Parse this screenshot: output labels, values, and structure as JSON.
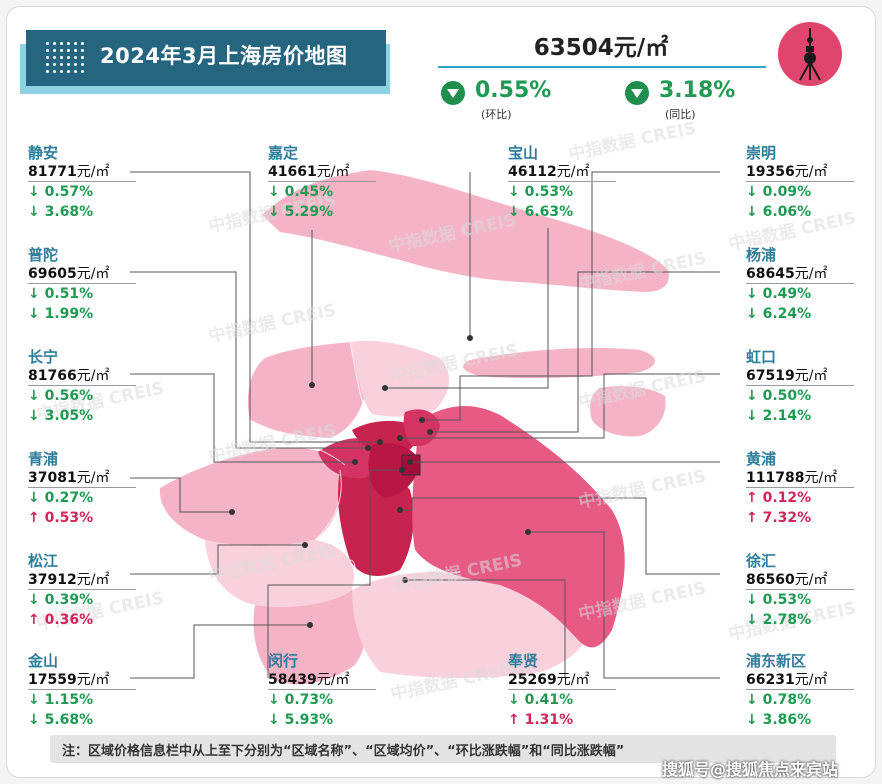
{
  "title": "2024年3月上海房价地图",
  "citywide": {
    "avg_price": "63504元/㎡",
    "mom": {
      "value": "0.55%",
      "label": "(环比)",
      "direction": "down"
    },
    "yoy": {
      "value": "3.18%",
      "label": "(同比)",
      "direction": "down"
    }
  },
  "districts": [
    {
      "id": "jingan",
      "name": "静安",
      "price": "81771",
      "unit": "元/㎡",
      "mom": "↓ 0.57%",
      "mom_dir": "down",
      "yoy": "↓ 3.68%",
      "yoy_dir": "down"
    },
    {
      "id": "putuo",
      "name": "普陀",
      "price": "69605",
      "unit": "元/㎡",
      "mom": "↓ 0.51%",
      "mom_dir": "down",
      "yoy": "↓ 1.99%",
      "yoy_dir": "down"
    },
    {
      "id": "changning",
      "name": "长宁",
      "price": "81766",
      "unit": "元/㎡",
      "mom": "↓ 0.56%",
      "mom_dir": "down",
      "yoy": "↓ 3.05%",
      "yoy_dir": "down"
    },
    {
      "id": "qingpu",
      "name": "青浦",
      "price": "37081",
      "unit": "元/㎡",
      "mom": "↓ 0.27%",
      "mom_dir": "down",
      "yoy": "↑ 0.53%",
      "yoy_dir": "up"
    },
    {
      "id": "songjiang",
      "name": "松江",
      "price": "37912",
      "unit": "元/㎡",
      "mom": "↓ 0.39%",
      "mom_dir": "down",
      "yoy": "↑ 0.36%",
      "yoy_dir": "up"
    },
    {
      "id": "jinshan",
      "name": "金山",
      "price": "17559",
      "unit": "元/㎡",
      "mom": "↓ 1.15%",
      "mom_dir": "down",
      "yoy": "↓ 5.68%",
      "yoy_dir": "down"
    },
    {
      "id": "jiading",
      "name": "嘉定",
      "price": "41661",
      "unit": "元/㎡",
      "mom": "↓ 0.45%",
      "mom_dir": "down",
      "yoy": "↓ 5.29%",
      "yoy_dir": "down"
    },
    {
      "id": "minhang",
      "name": "闵行",
      "price": "58439",
      "unit": "元/㎡",
      "mom": "↓ 0.73%",
      "mom_dir": "down",
      "yoy": "↓ 5.93%",
      "yoy_dir": "down"
    },
    {
      "id": "baoshan",
      "name": "宝山",
      "price": "46112",
      "unit": "元/㎡",
      "mom": "↓ 0.53%",
      "mom_dir": "down",
      "yoy": "↓ 6.63%",
      "yoy_dir": "down"
    },
    {
      "id": "fengxian",
      "name": "奉贤",
      "price": "25269",
      "unit": "元/㎡",
      "mom": "↓ 0.41%",
      "mom_dir": "down",
      "yoy": "↑ 1.31%",
      "yoy_dir": "up"
    },
    {
      "id": "chongming",
      "name": "崇明",
      "price": "19356",
      "unit": "元/㎡",
      "mom": "↓ 0.09%",
      "mom_dir": "down",
      "yoy": "↓ 6.06%",
      "yoy_dir": "down"
    },
    {
      "id": "yangpu",
      "name": "杨浦",
      "price": "68645",
      "unit": "元/㎡",
      "mom": "↓ 0.49%",
      "mom_dir": "down",
      "yoy": "↓ 6.24%",
      "yoy_dir": "down"
    },
    {
      "id": "hongkou",
      "name": "虹口",
      "price": "67519",
      "unit": "元/㎡",
      "mom": "↓ 0.50%",
      "mom_dir": "down",
      "yoy": "↓ 2.14%",
      "yoy_dir": "down"
    },
    {
      "id": "huangpu",
      "name": "黄浦",
      "price": "111788",
      "unit": "元/㎡",
      "mom": "↑ 0.12%",
      "mom_dir": "up",
      "yoy": "↑ 7.32%",
      "yoy_dir": "up"
    },
    {
      "id": "xuhui",
      "name": "徐汇",
      "price": "86560",
      "unit": "元/㎡",
      "mom": "↓ 0.53%",
      "mom_dir": "down",
      "yoy": "↓ 2.78%",
      "yoy_dir": "down"
    },
    {
      "id": "pudong",
      "name": "浦东新区",
      "price": "66231",
      "unit": "元/㎡",
      "mom": "↓ 0.78%",
      "mom_dir": "down",
      "yoy": "↓ 3.86%",
      "yoy_dir": "down"
    }
  ],
  "watermark": "中指数据 CREIS",
  "note": "注：区域价格信息栏中从上至下分别为“区域名称”、“区域均价”、“环比涨跌幅”和“同比涨跌幅”",
  "source": "搜狐号@搜狐焦点来宾站",
  "colors": {
    "title_bg": "#26657f",
    "district_name": "#2e7d9a",
    "down": "#1e9a52",
    "up": "#d4245a",
    "map_dark": "#c8234f",
    "map_core": "#d33463",
    "map_mid": "#ec7a9c",
    "map_light": "#f5b4c6",
    "map_lightest": "#f9d1dc"
  }
}
